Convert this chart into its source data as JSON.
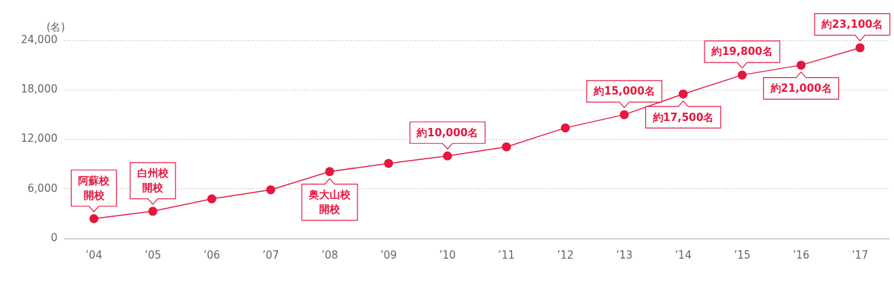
{
  "chart_data": {
    "type": "line",
    "ylabel": "(名)",
    "categories": [
      "’04",
      "’05",
      "’06",
      "’07",
      "’08",
      "’09",
      "’10",
      "’11",
      "’12",
      "’13",
      "’14",
      "’15",
      "’16",
      "’17"
    ],
    "series": [
      {
        "color": "#e5173f",
        "values": [
          2400,
          3300,
          4800,
          5900,
          8100,
          9100,
          10000,
          11100,
          13400,
          15000,
          17500,
          19800,
          21000,
          23100
        ]
      }
    ],
    "ylim": [
      0,
      24000
    ],
    "yticks": [
      0,
      {
        "value": 6000,
        "label": "6,000"
      },
      {
        "value": 12000,
        "label": "12,000"
      },
      {
        "value": 18000,
        "label": "18,000"
      },
      {
        "value": 24000,
        "label": "24,000"
      }
    ],
    "grid": "y",
    "legend": false,
    "marker": "circle",
    "line_style": "solid",
    "annotations": [
      {
        "text": "阿蘇校開校",
        "x": "’04",
        "y": 2400
      },
      {
        "text": "白州校開校",
        "x": "’05",
        "y": 3300
      },
      {
        "text": "奥大山校開校",
        "x": "’08",
        "y": 8100
      },
      {
        "text": "約10,000名",
        "x": "’10",
        "y": 10000
      },
      {
        "text": "約15,000名",
        "x": "’13",
        "y": 15000
      },
      {
        "text": "約17,500名",
        "x": "’14",
        "y": 17500
      },
      {
        "text": "約19,800名",
        "x": "’15",
        "y": 19800
      },
      {
        "text": "約21,000名",
        "x": "’16",
        "y": 21000
      },
      {
        "text": "約23,100名",
        "x": "’17",
        "y": 23100
      }
    ]
  }
}
